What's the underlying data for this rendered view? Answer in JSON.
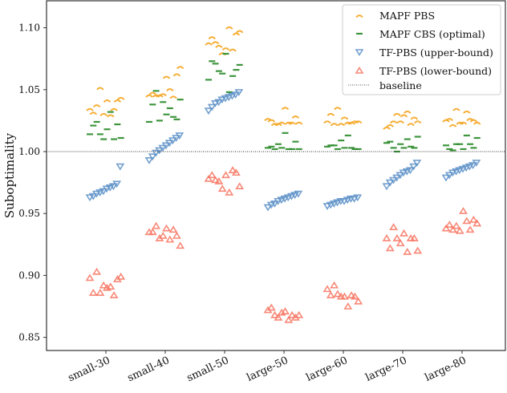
{
  "chart_data": {
    "type": "scatter",
    "title": "",
    "xlabel": "",
    "ylabel": "Suboptimality",
    "ylim": [
      0.83,
      1.12
    ],
    "yticks": [
      "0.85",
      "0.90",
      "0.95",
      "1.00",
      "1.05",
      "1.10"
    ],
    "categories": [
      "small-30",
      "small-40",
      "small-50",
      "large-50",
      "large-60",
      "large-70",
      "large-80"
    ],
    "baseline": 1.0,
    "legend_position": "top-right",
    "series": [
      {
        "name": "MAPF PBS",
        "marker": "arc",
        "color": "#f5a623",
        "values": [
          [
            1.034,
            1.034,
            1.03,
            1.031,
            1.041,
            1.041,
            1.037,
            1.043,
            1.029,
            1.051
          ],
          [
            1.045,
            1.044,
            1.046,
            1.047,
            1.062,
            1.06,
            1.045,
            1.068,
            1.05,
            1.045
          ],
          [
            1.087,
            1.082,
            1.079,
            1.092,
            1.095,
            1.083,
            1.088,
            1.097,
            1.1,
            1.085
          ],
          [
            1.026,
            1.023,
            1.023,
            1.025,
            1.028,
            1.035,
            1.022,
            1.023,
            1.023,
            1.022
          ],
          [
            1.024,
            1.023,
            1.022,
            1.03,
            1.024,
            1.027,
            1.022,
            1.024,
            1.023,
            1.035
          ],
          [
            1.019,
            1.022,
            1.024,
            1.021,
            1.027,
            1.029,
            1.024,
            1.024,
            1.032,
            1.03
          ],
          [
            1.025,
            1.026,
            1.023,
            1.026,
            1.025,
            1.023,
            1.021,
            1.023,
            1.032,
            1.034
          ]
        ]
      },
      {
        "name": "MAPF CBS (optimal)",
        "marker": "dash",
        "color": "#2a8a2a",
        "values": [
          [
            1.014,
            1.014,
            1.01,
            1.01,
            1.021,
            1.022,
            1.018,
            1.024,
            1.011,
            1.032
          ],
          [
            1.025,
            1.024,
            1.028,
            1.04,
            1.038,
            1.026,
            1.03,
            1.049,
            1.042,
            1.035
          ],
          [
            1.065,
            1.058,
            1.061,
            1.063,
            1.073,
            1.066,
            1.079,
            1.071,
            1.07,
            1.048
          ],
          [
            1.006,
            1.003,
            1.002,
            1.003,
            1.004,
            1.008,
            1.015,
            1.002,
            1.002,
            1.002
          ],
          [
            1.002,
            1.004,
            1.003,
            1.009,
            1.005,
            1.002,
            1.003,
            1.005,
            1.002,
            1.013
          ],
          [
            1.0,
            1.007,
            1.004,
            1.006,
            1.008,
            1.003,
            1.003,
            1.003,
            1.012,
            1.01
          ],
          [
            1.006,
            1.005,
            1.006,
            1.006,
            1.002,
            1.003,
            1.002,
            1.001,
            1.011,
            1.013
          ]
        ]
      },
      {
        "name": "TF-PBS (upper-bound)",
        "marker": "triangle-down",
        "color": "#5b8fc7",
        "values": [
          [
            0.963,
            0.964,
            0.966,
            0.967,
            0.968,
            0.97,
            0.971,
            0.972,
            0.974,
            0.988
          ],
          [
            0.993,
            0.996,
            0.999,
            1.001,
            1.003,
            1.005,
            1.007,
            1.009,
            1.011,
            1.013
          ],
          [
            1.033,
            1.036,
            1.039,
            1.04,
            1.042,
            1.043,
            1.044,
            1.045,
            1.046,
            1.048
          ],
          [
            0.955,
            0.957,
            0.958,
            0.96,
            0.961,
            0.962,
            0.963,
            0.964,
            0.965,
            0.966
          ],
          [
            0.956,
            0.957,
            0.958,
            0.959,
            0.96,
            0.96,
            0.961,
            0.962,
            0.962,
            0.963
          ],
          [
            0.972,
            0.975,
            0.977,
            0.979,
            0.981,
            0.983,
            0.984,
            0.985,
            0.988,
            0.991
          ],
          [
            0.979,
            0.981,
            0.983,
            0.984,
            0.985,
            0.986,
            0.987,
            0.988,
            0.989,
            0.991
          ]
        ]
      },
      {
        "name": "TF-PBS (lower-bound)",
        "marker": "triangle-up",
        "color": "#f7735f",
        "values": [
          [
            0.899,
            0.891,
            0.886,
            0.898,
            0.884,
            0.892,
            0.886,
            0.897,
            0.89,
            0.903
          ],
          [
            0.924,
            0.929,
            0.93,
            0.935,
            0.937,
            0.932,
            0.935,
            0.932,
            0.938,
            0.94
          ],
          [
            0.972,
            0.967,
            0.976,
            0.978,
            0.985,
            0.97,
            0.981,
            0.983,
            0.981,
            0.977
          ],
          [
            0.868,
            0.864,
            0.866,
            0.872,
            0.868,
            0.87,
            0.874,
            0.866,
            0.871,
            0.868
          ],
          [
            0.879,
            0.875,
            0.885,
            0.889,
            0.884,
            0.883,
            0.884,
            0.883,
            0.883,
            0.892
          ],
          [
            0.92,
            0.919,
            0.93,
            0.93,
            0.93,
            0.926,
            0.922,
            0.93,
            0.934,
            0.939
          ],
          [
            0.942,
            0.944,
            0.94,
            0.938,
            0.937,
            0.936,
            0.941,
            0.945,
            0.952,
            0.937
          ]
        ]
      }
    ],
    "baseline_label": "baseline"
  }
}
